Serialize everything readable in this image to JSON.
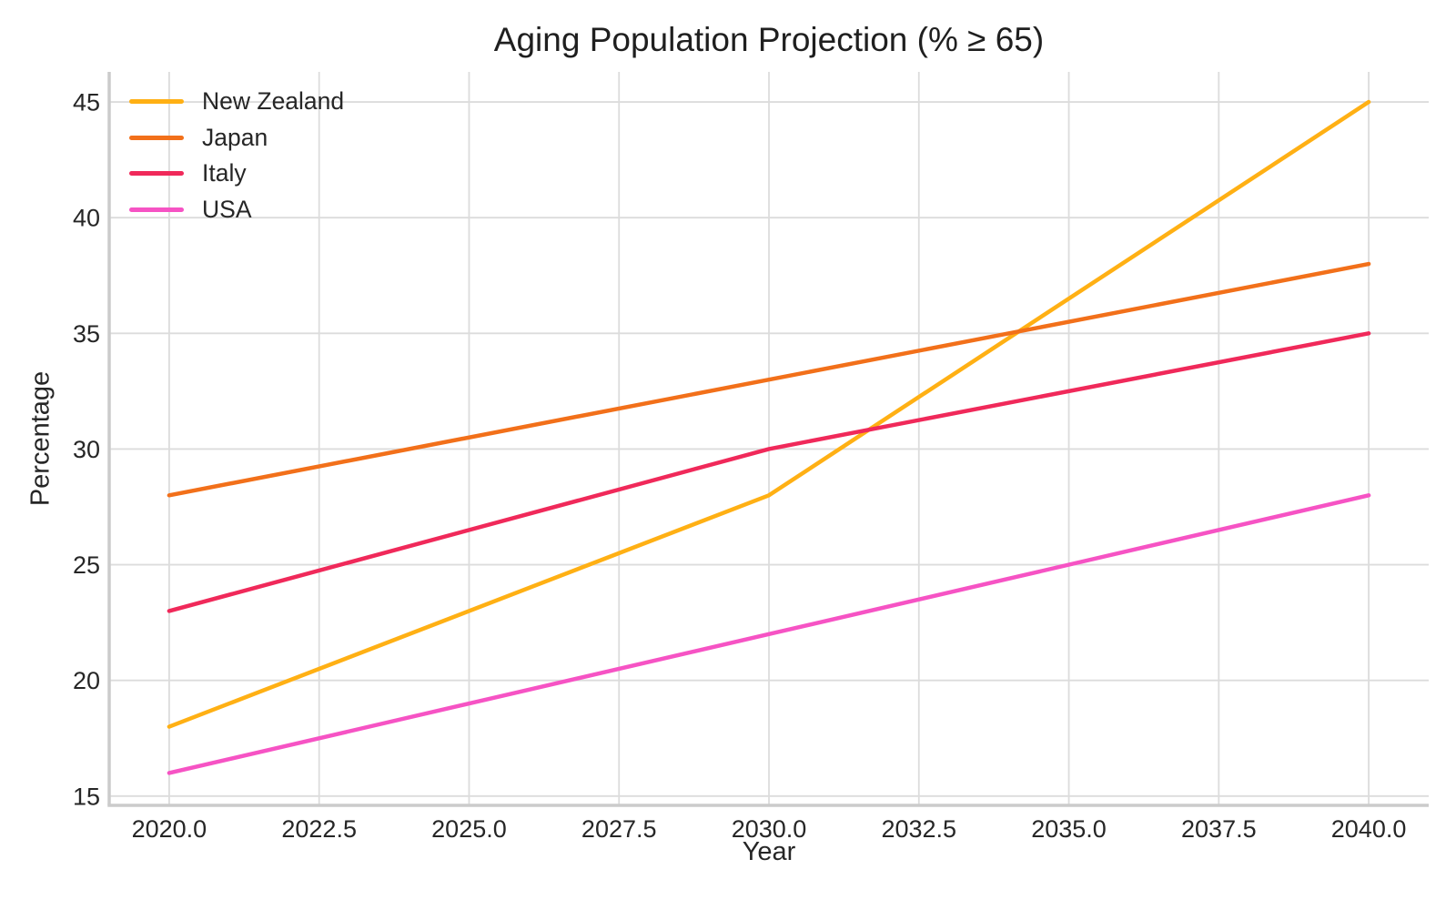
{
  "chart_data": {
    "type": "line",
    "title": "Aging Population Projection (% ≥ 65)",
    "xlabel": "Year",
    "ylabel": "Percentage",
    "x": [
      2020,
      2030,
      2040
    ],
    "series": [
      {
        "name": "New Zealand",
        "color": "#FFB014",
        "values": [
          18,
          28,
          45
        ]
      },
      {
        "name": "Japan",
        "color": "#F2701A",
        "values": [
          28,
          33,
          38
        ]
      },
      {
        "name": "Italy",
        "color": "#F0295A",
        "values": [
          23,
          30,
          35
        ]
      },
      {
        "name": "USA",
        "color": "#F653C4",
        "values": [
          16,
          22,
          28
        ]
      }
    ],
    "x_ticks": {
      "values": [
        2020,
        2022.5,
        2025,
        2027.5,
        2030,
        2032.5,
        2035,
        2037.5,
        2040
      ],
      "labels": [
        "2020.0",
        "2022.5",
        "2025.0",
        "2027.5",
        "2030.0",
        "2032.5",
        "2035.0",
        "2037.5",
        "2040.0"
      ]
    },
    "y_ticks": {
      "values": [
        15,
        20,
        25,
        30,
        35,
        40,
        45
      ],
      "labels": [
        "15",
        "20",
        "25",
        "30",
        "35",
        "40",
        "45"
      ]
    },
    "xlim": [
      2019,
      2041
    ],
    "ylim": [
      14.6,
      46.3
    ],
    "grid": true,
    "legend_position": "upper-left",
    "styles": {
      "background": "#FFFFFF",
      "grid_color": "#DCDCDC",
      "spine_color": "#CBCBCB",
      "text_color": "#262626",
      "title_color": "#1F1F1F",
      "line_width": 4.5
    }
  }
}
